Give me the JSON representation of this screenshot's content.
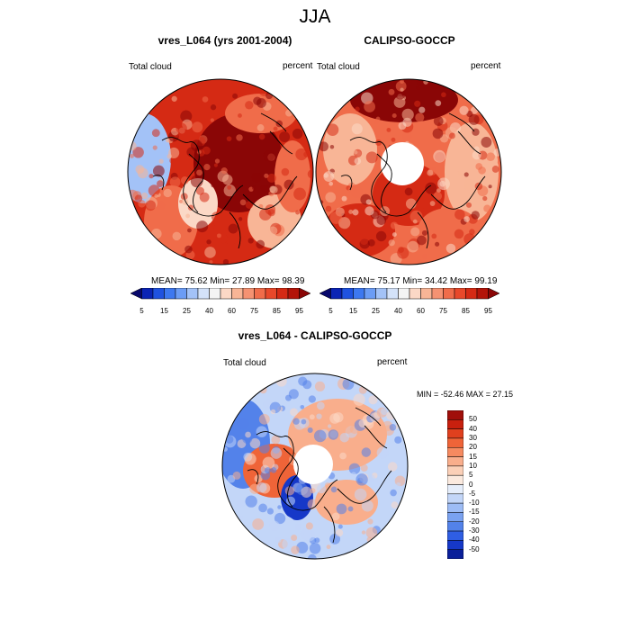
{
  "title": "JJA",
  "panels": [
    {
      "title": "vres_L064 (yrs 2001-2004)",
      "left_label": "Total cloud",
      "right_label": "percent",
      "stats": "MEAN=  75.62  Min=  27.89  Max=  98.39"
    },
    {
      "title": "CALIPSO-GOCCP",
      "left_label": "Total cloud",
      "right_label": "percent",
      "stats": "MEAN=  75.17  Min=  34.42  Max=  99.19"
    },
    {
      "title": "vres_L064 - CALIPSO-GOCCP",
      "left_label": "Total cloud",
      "right_label": "percent",
      "stats": "MIN = -52.46 MAX =  27.15"
    }
  ],
  "abs_colorbar": {
    "labels": [
      "5",
      "15",
      "25",
      "40",
      "60",
      "75",
      "85",
      "95"
    ],
    "colors": [
      "#08086b",
      "#0b24b5",
      "#1f52e0",
      "#3d78f0",
      "#6b9cf5",
      "#a3c2f7",
      "#d4e2f9",
      "#f4f4f4",
      "#fbd8c6",
      "#f8b596",
      "#f59272",
      "#f06c4a",
      "#e8482a",
      "#d52a14",
      "#b31409",
      "#8a0606"
    ]
  },
  "diff_colorbar": {
    "labels": [
      "50",
      "40",
      "30",
      "20",
      "15",
      "10",
      "5",
      "0",
      "-5",
      "-10",
      "-15",
      "-20",
      "-30",
      "-40",
      "-50"
    ],
    "colors": [
      "#a00f0a",
      "#c8200e",
      "#e0401e",
      "#ef6438",
      "#f68a60",
      "#f9ae8c",
      "#fbd0b8",
      "#fbeadf",
      "#e6eefb",
      "#c3d6f8",
      "#9dbcf5",
      "#7aa2f0",
      "#5382ea",
      "#2f5ee3",
      "#1638c8",
      "#0a1f9a"
    ]
  },
  "map_colors": {
    "deep_red": "#8a0606",
    "red": "#d52a14",
    "orange_red": "#f06c4a",
    "salmon": "#f8b596",
    "pale": "#fbd8c6",
    "light_blue": "#a3c2f7",
    "blue": "#3d78f0",
    "diff_red": "#ef6438",
    "diff_light_red": "#f9ae8c",
    "diff_blue": "#5382ea",
    "diff_light_blue": "#c3d6f8",
    "diff_deep_blue": "#1638c8",
    "coast": "#000000"
  }
}
